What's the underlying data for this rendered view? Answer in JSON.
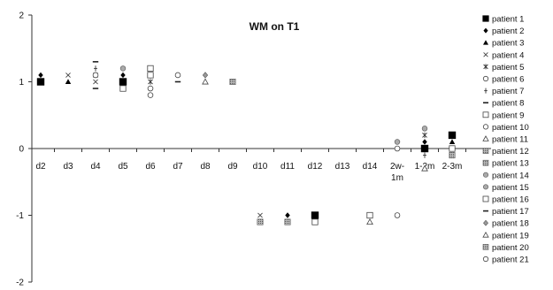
{
  "chart_data": {
    "type": "scatter",
    "title": "WM on T1",
    "xlabel": "",
    "ylabel": "",
    "categories": [
      "d2",
      "d3",
      "d4",
      "d5",
      "d6",
      "d7",
      "d8",
      "d9",
      "d10",
      "d11",
      "d12",
      "d13",
      "d14",
      "2w-\n1m",
      "1-2m",
      "2-3m"
    ],
    "ylim": [
      -2,
      2
    ],
    "yticks": [
      -2,
      -1,
      0,
      1,
      2
    ],
    "grid": false,
    "legend_position": "right",
    "series": [
      {
        "name": "patient 1",
        "marker": "filled-square",
        "points": [
          {
            "x": "d2",
            "y": 1.0
          },
          {
            "x": "d5",
            "y": 1.0
          },
          {
            "x": "d12",
            "y": -1.0
          },
          {
            "x": "1-2m",
            "y": 0.0
          },
          {
            "x": "2-3m",
            "y": 0.2
          }
        ]
      },
      {
        "name": "patient 2",
        "marker": "filled-diamond",
        "points": [
          {
            "x": "d2",
            "y": 1.1
          },
          {
            "x": "d5",
            "y": 1.1
          },
          {
            "x": "d11",
            "y": -1.0
          },
          {
            "x": "1-2m",
            "y": 0.1
          }
        ]
      },
      {
        "name": "patient 3",
        "marker": "filled-triangle",
        "points": [
          {
            "x": "d3",
            "y": 1.0
          },
          {
            "x": "2-3m",
            "y": 0.1
          }
        ]
      },
      {
        "name": "patient 4",
        "marker": "x",
        "points": [
          {
            "x": "d3",
            "y": 1.1
          },
          {
            "x": "d4",
            "y": 1.0
          },
          {
            "x": "d10",
            "y": -1.0
          }
        ]
      },
      {
        "name": "patient 5",
        "marker": "star",
        "points": [
          {
            "x": "d4",
            "y": 1.1
          },
          {
            "x": "d6",
            "y": 1.0
          },
          {
            "x": "1-2m",
            "y": 0.2
          }
        ]
      },
      {
        "name": "patient 6",
        "marker": "open-circle",
        "points": [
          {
            "x": "d6",
            "y": 0.9
          }
        ]
      },
      {
        "name": "patient 7",
        "marker": "plus",
        "points": [
          {
            "x": "d4",
            "y": 1.2
          },
          {
            "x": "1-2m",
            "y": -0.1
          }
        ]
      },
      {
        "name": "patient 8",
        "marker": "dash",
        "points": [
          {
            "x": "d4",
            "y": 0.9
          },
          {
            "x": "d7",
            "y": 1.0
          }
        ]
      },
      {
        "name": "patient 9",
        "marker": "open-square",
        "points": [
          {
            "x": "d5",
            "y": 0.9
          },
          {
            "x": "d12",
            "y": -1.1
          },
          {
            "x": "d14",
            "y": -1.0
          },
          {
            "x": "2-3m",
            "y": 0.0
          }
        ]
      },
      {
        "name": "patient 10",
        "marker": "open-circle",
        "points": [
          {
            "x": "d4",
            "y": 1.1
          },
          {
            "x": "d7",
            "y": 1.1
          },
          {
            "x": "2w-\n1m",
            "y": -1.0
          }
        ]
      },
      {
        "name": "patient 11",
        "marker": "open-triangle",
        "points": [
          {
            "x": "d8",
            "y": 1.0
          },
          {
            "x": "1-2m",
            "y": -0.3
          }
        ]
      },
      {
        "name": "patient 12",
        "marker": "hatched-square",
        "points": [
          {
            "x": "d9",
            "y": 1.0
          },
          {
            "x": "d11",
            "y": -1.1
          },
          {
            "x": "2-3m",
            "y": -0.1
          }
        ]
      },
      {
        "name": "patient 13",
        "marker": "hatched-square",
        "points": [
          {
            "x": "d10",
            "y": -1.1
          }
        ]
      },
      {
        "name": "patient 14",
        "marker": "gray-circle",
        "points": [
          {
            "x": "2w-\n1m",
            "y": 0.1
          }
        ]
      },
      {
        "name": "patient 15",
        "marker": "gray-circle",
        "points": [
          {
            "x": "d5",
            "y": 1.2
          },
          {
            "x": "1-2m",
            "y": 0.3
          }
        ]
      },
      {
        "name": "patient 16",
        "marker": "open-square",
        "points": [
          {
            "x": "d6",
            "y": 1.2
          },
          {
            "x": "d6",
            "y": 1.1
          }
        ]
      },
      {
        "name": "patient 17",
        "marker": "dash",
        "points": [
          {
            "x": "d4",
            "y": 1.3
          }
        ]
      },
      {
        "name": "patient 18",
        "marker": "gray-diamond",
        "points": [
          {
            "x": "d8",
            "y": 1.1
          }
        ]
      },
      {
        "name": "patient 19",
        "marker": "open-triangle",
        "points": [
          {
            "x": "d14",
            "y": -1.1
          }
        ]
      },
      {
        "name": "patient 20",
        "marker": "hatched-square",
        "points": [
          {
            "x": "d9",
            "y": 1.0
          }
        ]
      },
      {
        "name": "patient 21",
        "marker": "open-circle",
        "points": [
          {
            "x": "d6",
            "y": 0.8
          },
          {
            "x": "2w-\n1m",
            "y": 0.0
          }
        ]
      }
    ]
  }
}
